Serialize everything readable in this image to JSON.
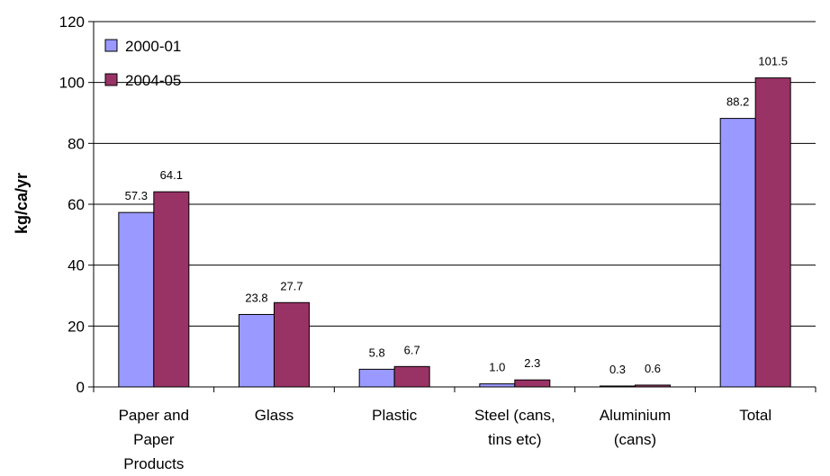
{
  "chart_data": {
    "type": "bar",
    "title": "",
    "xlabel": "",
    "ylabel": "kg/ca/yr",
    "ylim": [
      0,
      120
    ],
    "yticks": [
      0,
      20,
      40,
      60,
      80,
      100,
      120
    ],
    "grid": true,
    "legend_position": "top-left",
    "categories": [
      [
        "Paper and",
        "Paper",
        "Products"
      ],
      [
        "Glass"
      ],
      [
        "Plastic"
      ],
      [
        "Steel (cans,",
        "tins etc)"
      ],
      [
        "Aluminium",
        "(cans)"
      ],
      [
        "Total"
      ]
    ],
    "series": [
      {
        "name": "2000-01",
        "color": "#9999ff",
        "values": [
          57.3,
          23.8,
          5.8,
          1.0,
          0.3,
          88.2
        ],
        "labels": [
          "57.3",
          "23.8",
          "5.8",
          "1.0",
          "0.3",
          "88.2"
        ]
      },
      {
        "name": "2004-05",
        "color": "#993366",
        "values": [
          64.1,
          27.7,
          6.7,
          2.3,
          0.6,
          101.5
        ],
        "labels": [
          "64.1",
          "27.7",
          "6.7",
          "2.3",
          "0.6",
          "101.5"
        ]
      }
    ]
  }
}
